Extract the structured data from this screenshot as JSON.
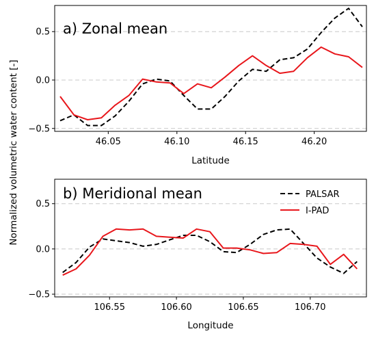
{
  "figure": {
    "ylabel": "Normalized volumetric water content [-]",
    "colors": {
      "PALSAR": "#000000",
      "I-PAD": "#e8161b"
    }
  },
  "chart_data": [
    {
      "type": "line",
      "title": "a) Zonal mean",
      "xlabel": "Latitude",
      "ylabel": "Normalized volumetric water content [-]",
      "xlim": [
        46.011,
        46.238
      ],
      "ylim": [
        -0.53,
        0.77
      ],
      "xticks": [
        46.05,
        46.1,
        46.15,
        46.2
      ],
      "xtick_labels": [
        "46.05",
        "46.10",
        "46.15",
        "46.20"
      ],
      "yticks": [
        -0.5,
        0.0,
        0.5
      ],
      "ytick_labels": [
        "−0.5",
        "0.0",
        "0.5"
      ],
      "grid": "horizontal dashed",
      "x": [
        46.015,
        46.025,
        46.035,
        46.045,
        46.055,
        46.065,
        46.075,
        46.085,
        46.095,
        46.105,
        46.115,
        46.125,
        46.135,
        46.145,
        46.155,
        46.165,
        46.175,
        46.185,
        46.195,
        46.205,
        46.215,
        46.225,
        46.235
      ],
      "series": [
        {
          "name": "PALSAR",
          "style": "dashed",
          "values": [
            -0.42,
            -0.36,
            -0.47,
            -0.47,
            -0.37,
            -0.22,
            -0.04,
            0.01,
            -0.01,
            -0.16,
            -0.3,
            -0.3,
            -0.17,
            -0.01,
            0.11,
            0.09,
            0.21,
            0.23,
            0.32,
            0.49,
            0.64,
            0.74,
            0.55
          ]
        },
        {
          "name": "I-PAD",
          "style": "solid",
          "values": [
            -0.17,
            -0.36,
            -0.41,
            -0.39,
            -0.26,
            -0.16,
            0.01,
            -0.02,
            -0.03,
            -0.14,
            -0.04,
            -0.08,
            0.03,
            0.15,
            0.25,
            0.15,
            0.07,
            0.09,
            0.23,
            0.34,
            0.27,
            0.24,
            0.13
          ]
        }
      ]
    },
    {
      "type": "line",
      "title": "b) Meridional mean",
      "xlabel": "Longitude",
      "ylabel": "Normalized volumetric water content [-]",
      "xlim": [
        106.509,
        106.742
      ],
      "ylim": [
        -0.53,
        0.77
      ],
      "xticks": [
        106.55,
        106.6,
        106.65,
        106.7
      ],
      "xtick_labels": [
        "106.55",
        "106.60",
        "106.65",
        "106.70"
      ],
      "yticks": [
        -0.5,
        0.0,
        0.5
      ],
      "ytick_labels": [
        "−0.5",
        "0.0",
        "0.5"
      ],
      "grid": "horizontal dashed",
      "legend": {
        "position": "top-right",
        "entries": [
          "PALSAR",
          "I-PAD"
        ]
      },
      "x": [
        106.515,
        106.525,
        106.535,
        106.545,
        106.555,
        106.565,
        106.575,
        106.585,
        106.595,
        106.605,
        106.615,
        106.625,
        106.635,
        106.645,
        106.655,
        106.665,
        106.675,
        106.685,
        106.695,
        106.705,
        106.715,
        106.725,
        106.735
      ],
      "series": [
        {
          "name": "PALSAR",
          "style": "dashed",
          "values": [
            -0.26,
            -0.15,
            0.02,
            0.11,
            0.09,
            0.07,
            0.03,
            0.05,
            0.1,
            0.15,
            0.15,
            0.08,
            -0.03,
            -0.04,
            0.05,
            0.16,
            0.21,
            0.22,
            0.06,
            -0.1,
            -0.2,
            -0.27,
            -0.14
          ]
        },
        {
          "name": "I-PAD",
          "style": "solid",
          "values": [
            -0.29,
            -0.22,
            -0.07,
            0.14,
            0.22,
            0.21,
            0.22,
            0.14,
            0.13,
            0.12,
            0.22,
            0.19,
            0.01,
            0.01,
            -0.01,
            -0.05,
            -0.04,
            0.06,
            0.05,
            0.03,
            -0.17,
            -0.06,
            -0.22
          ]
        }
      ]
    }
  ]
}
